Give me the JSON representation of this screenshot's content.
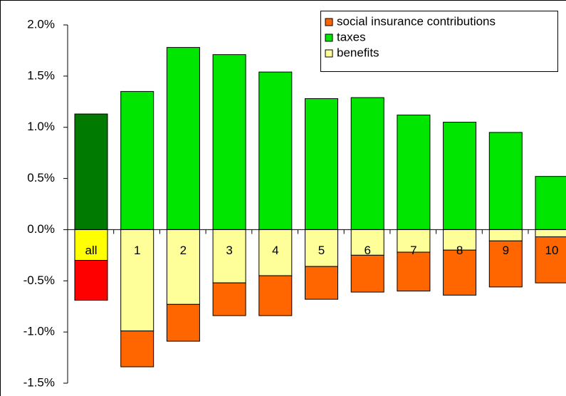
{
  "chart_data": {
    "type": "stacked_bar",
    "categories": [
      "all",
      "1",
      "2",
      "3",
      "4",
      "5",
      "6",
      "7",
      "8",
      "9",
      "10"
    ],
    "series": [
      {
        "name": "social insurance contributions",
        "color": "#ff6600",
        "highlight_color": "#ff0000",
        "values": [
          -0.39,
          -0.35,
          -0.36,
          -0.32,
          -0.39,
          -0.32,
          -0.36,
          -0.38,
          -0.44,
          -0.45,
          -0.45
        ]
      },
      {
        "name": "taxes",
        "color": "#00e600",
        "highlight_color": "#007a00",
        "values": [
          1.13,
          1.35,
          1.78,
          1.71,
          1.54,
          1.28,
          1.29,
          1.12,
          1.05,
          0.95,
          0.52
        ]
      },
      {
        "name": "benefits",
        "color": "#ffff99",
        "highlight_color": "#ffff00",
        "values": [
          -0.3,
          -0.99,
          -0.73,
          -0.52,
          -0.45,
          -0.36,
          -0.25,
          -0.22,
          -0.2,
          -0.11,
          -0.07
        ]
      }
    ],
    "ylim": [
      -1.5,
      2.0
    ],
    "yticks": [
      {
        "value": -1.5,
        "label": "-1.5%"
      },
      {
        "value": -1.0,
        "label": "-1.0%"
      },
      {
        "value": -0.5,
        "label": "-0.5%"
      },
      {
        "value": 0,
        "label": "0.0%"
      },
      {
        "value": 0.5,
        "label": "0.5%"
      },
      {
        "value": 1.0,
        "label": "1.0%"
      },
      {
        "value": 1.5,
        "label": "1.5%"
      },
      {
        "value": 2.0,
        "label": "2.0%"
      }
    ],
    "legend": "top-right"
  }
}
